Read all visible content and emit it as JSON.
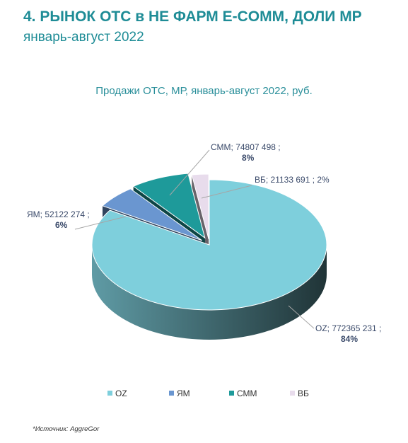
{
  "header": {
    "title": "4. РЫНОК ОТС в НЕ ФАРМ E-COMM, ДОЛИ МР",
    "subtitle": "январь-август 2022"
  },
  "chart_data": {
    "type": "pie",
    "title": "Продажи ОТС, МР, январь-август 2022, руб.",
    "slices": [
      {
        "name": "OZ",
        "value": 772365231,
        "value_label": "772365 231",
        "percent_label": "84%",
        "color": "#7ecfdc"
      },
      {
        "name": "ЯМ",
        "value": 52122274,
        "value_label": "52122 274",
        "percent_label": "6%",
        "color": "#6a96d0"
      },
      {
        "name": "СММ",
        "value": 74807498,
        "value_label": "74807 498",
        "percent_label": "8%",
        "color": "#1e9a9a"
      },
      {
        "name": "ВБ",
        "value": 21133691,
        "value_label": "21133 691",
        "percent_label": "2%",
        "color": "#e8dcec"
      }
    ],
    "legend": [
      "OZ",
      "ЯМ",
      "СММ",
      "ВБ"
    ],
    "legend_position": "bottom"
  },
  "footer": {
    "source": "*Источник: AggreGor"
  }
}
